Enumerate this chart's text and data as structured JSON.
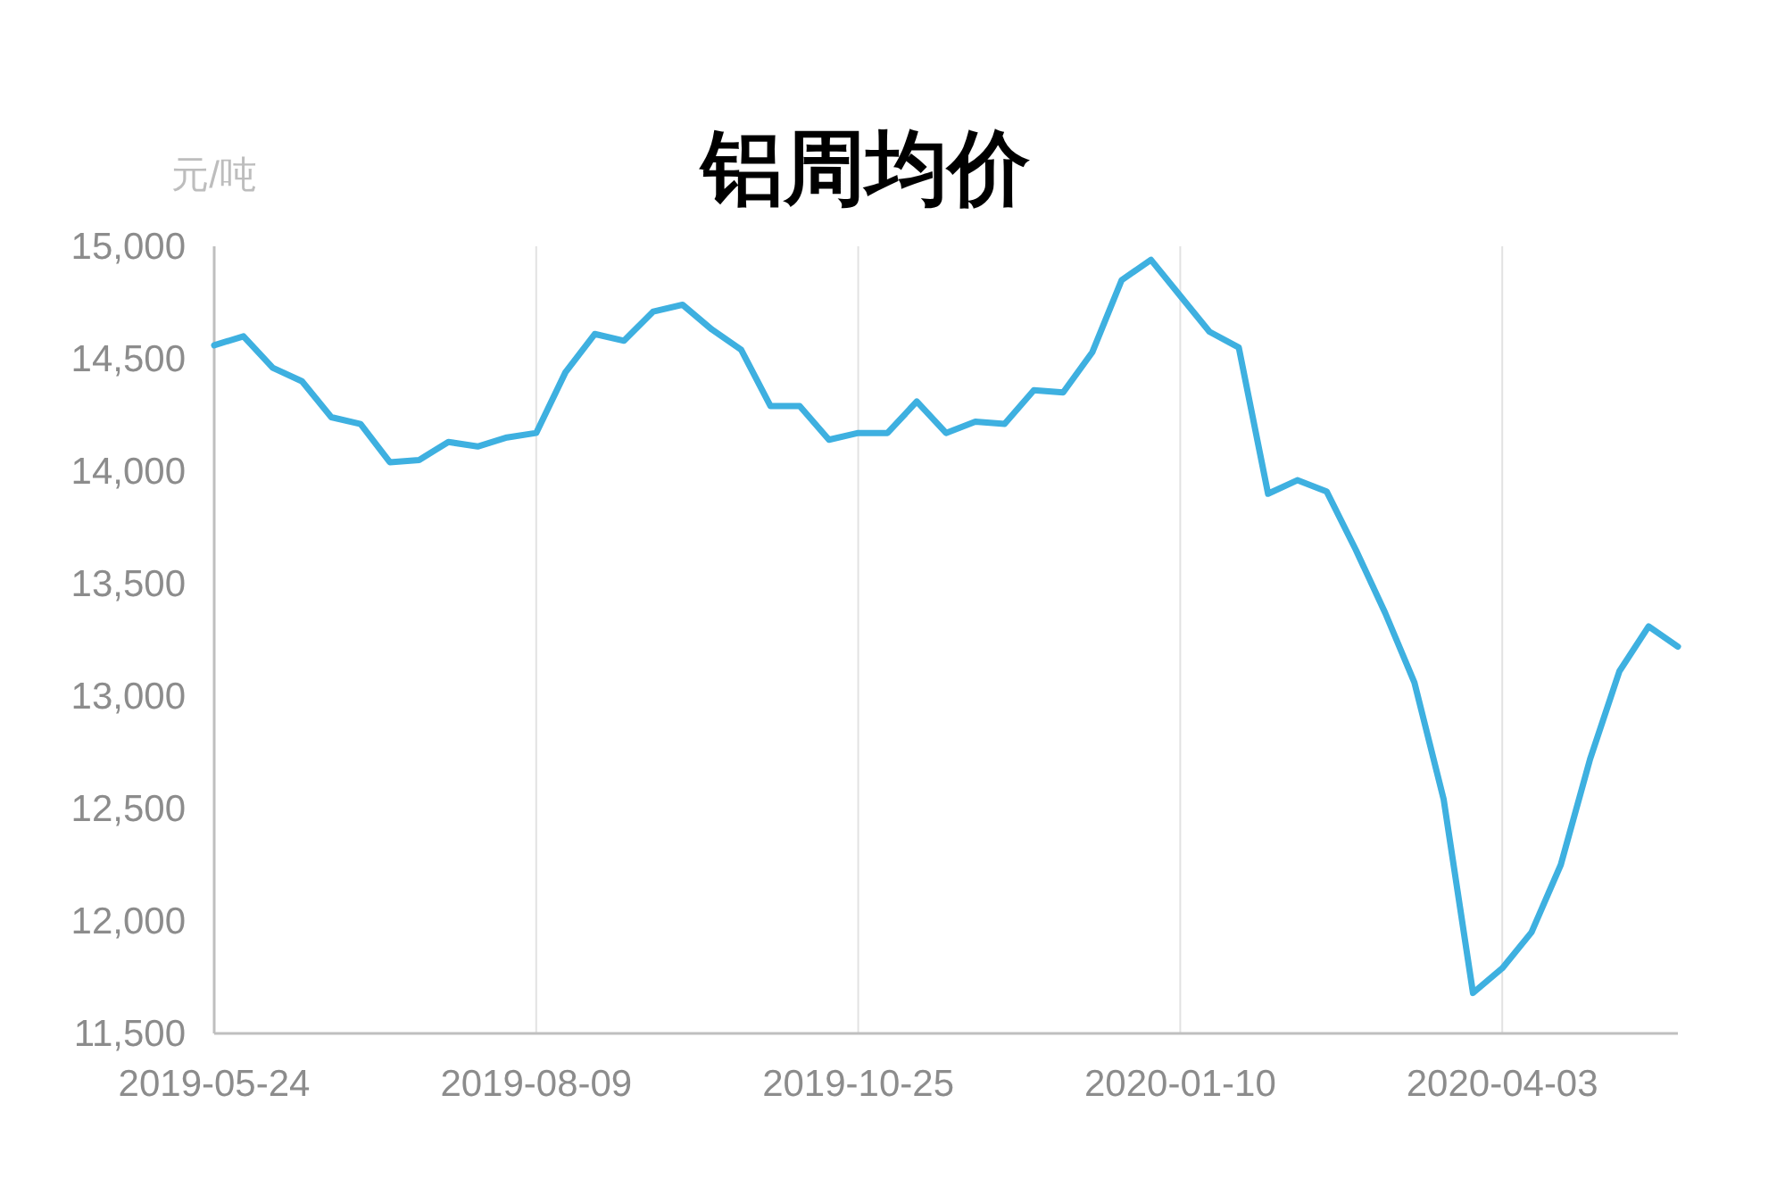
{
  "chart_data": {
    "type": "line",
    "title": "铝周均价",
    "ylabel": "元/吨",
    "categories": [
      "2019-05-24",
      null,
      null,
      null,
      null,
      null,
      null,
      null,
      null,
      null,
      null,
      "2019-08-09",
      null,
      null,
      null,
      null,
      null,
      null,
      null,
      null,
      null,
      null,
      "2019-10-25",
      null,
      null,
      null,
      null,
      null,
      null,
      null,
      null,
      null,
      null,
      "2020-01-10",
      null,
      null,
      null,
      null,
      null,
      null,
      null,
      null,
      null,
      null,
      "2020-04-03",
      null,
      null,
      null,
      null,
      null,
      null
    ],
    "series": [
      {
        "color": "#3eb0e0",
        "values": [
          14560,
          14600,
          14460,
          14400,
          14240,
          14210,
          14040,
          14050,
          14130,
          14110,
          14150,
          14170,
          14440,
          14610,
          14580,
          14710,
          14740,
          14630,
          14540,
          14290,
          14290,
          14140,
          14170,
          14170,
          14310,
          14170,
          14220,
          14210,
          14360,
          14350,
          14530,
          14850,
          14940,
          14780,
          14620,
          14550,
          13900,
          13960,
          13910,
          13650,
          13370,
          13060,
          12540,
          11680,
          11790,
          11950,
          12250,
          12720,
          13110,
          13310,
          13220
        ]
      }
    ],
    "ylim": [
      11500,
      15000
    ],
    "yticks": [
      {
        "value": 11500,
        "label": "11,500"
      },
      {
        "value": 12000,
        "label": "12,000"
      },
      {
        "value": 12500,
        "label": "12,500"
      },
      {
        "value": 13000,
        "label": "13,000"
      },
      {
        "value": 13500,
        "label": "13,500"
      },
      {
        "value": 14000,
        "label": "14,000"
      },
      {
        "value": 14500,
        "label": "14,500"
      },
      {
        "value": 15000,
        "label": "15,000"
      }
    ],
    "grid": "x",
    "marker": "none",
    "line_style": "solid"
  }
}
